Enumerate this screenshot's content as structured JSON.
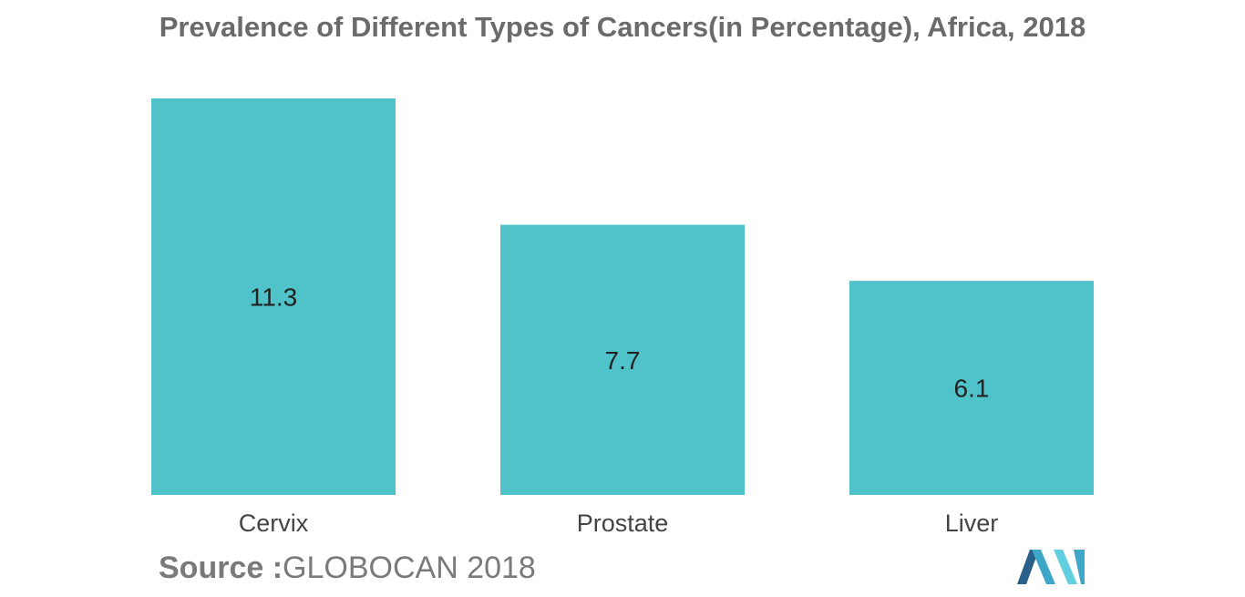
{
  "chart_data": {
    "type": "bar",
    "title": "Prevalence of Different Types of Cancers(in Percentage), Africa, 2018",
    "categories": [
      "Cervix",
      "Prostate",
      "Liver"
    ],
    "values": [
      11.3,
      7.7,
      6.1
    ],
    "value_labels": [
      "11.3",
      "7.7",
      "6.1"
    ],
    "xlabel": "",
    "ylabel": "",
    "ylim": [
      0,
      11.3
    ],
    "grid": false,
    "legend": "none",
    "bar_color": "#4fc3c9"
  },
  "source": {
    "label": "Source :",
    "text": "GLOBOCAN 2018"
  },
  "logo": {
    "icon": "mordor-logo-icon",
    "colors": [
      "#2a5f8a",
      "#3ea6c7",
      "#62cfe0"
    ]
  }
}
